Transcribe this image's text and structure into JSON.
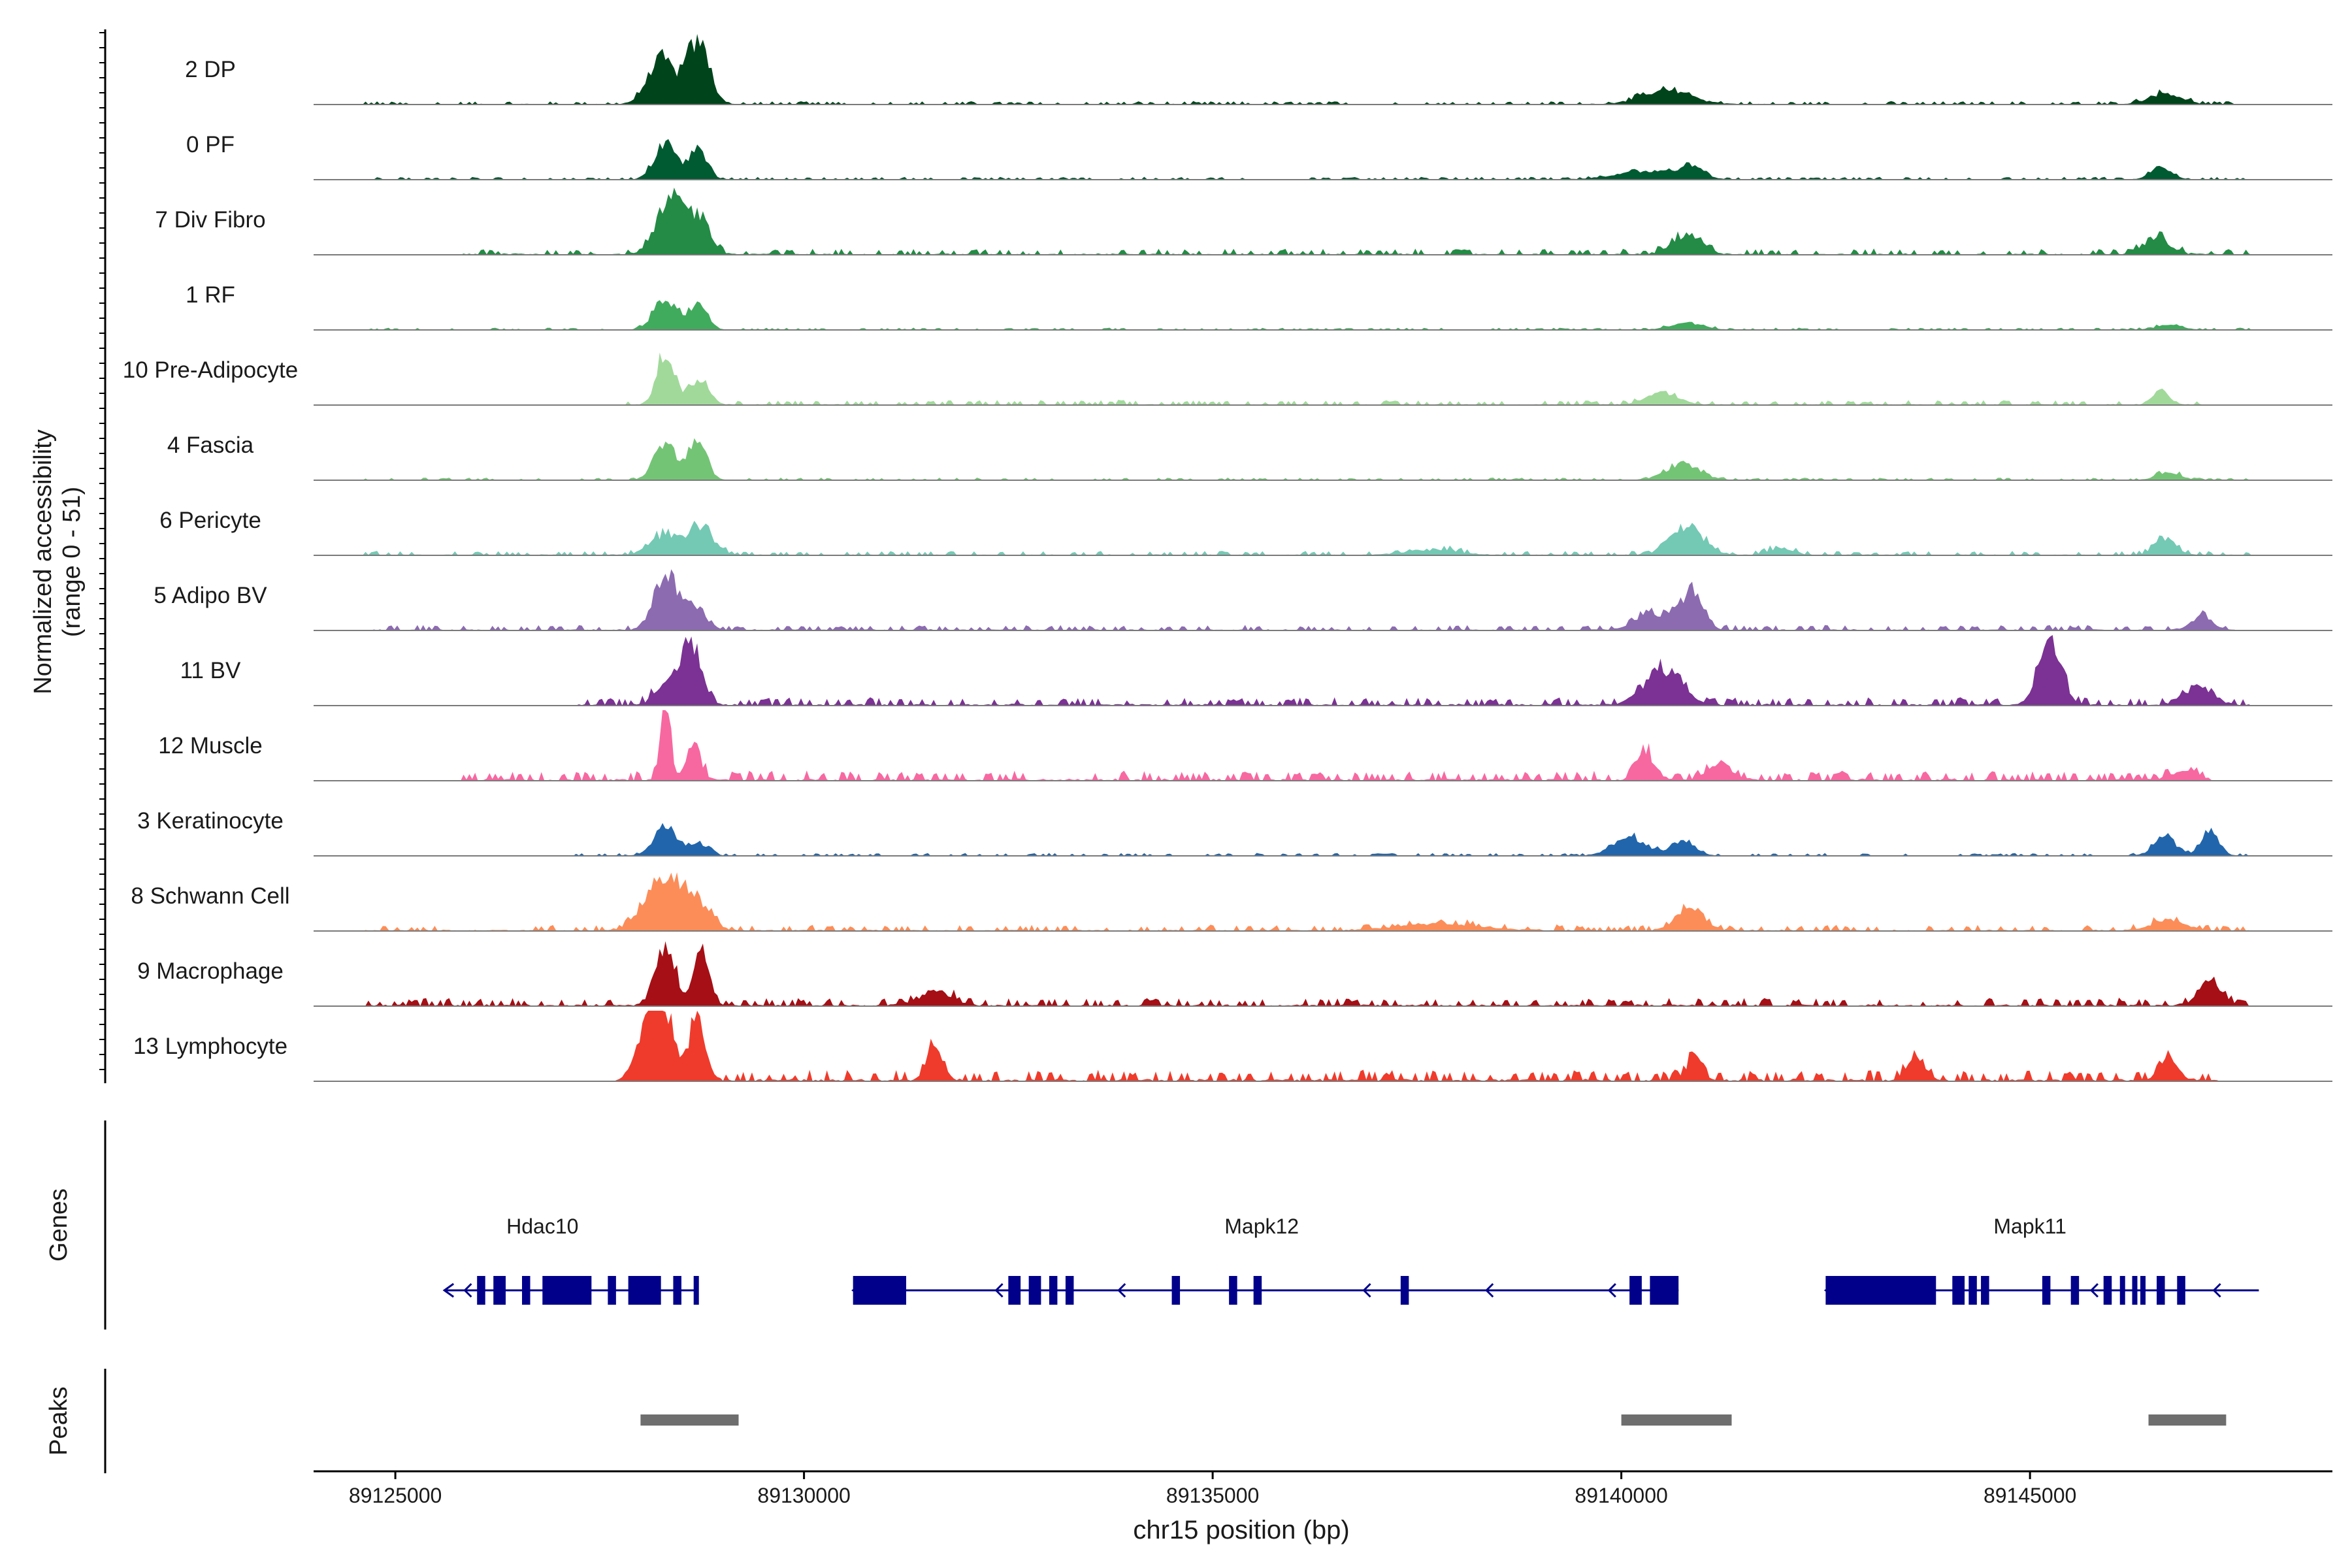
{
  "chart_data": {
    "type": "area",
    "title": "",
    "chromosome": "chr15",
    "xlabel": "chr15 position (bp)",
    "ylabel_line1": "Normalized accessibility",
    "ylabel_line2": "(range 0 - 51)",
    "y_range": [
      0,
      51
    ],
    "xlim": [
      89124000,
      89148700
    ],
    "x_ticks": [
      89125000,
      89130000,
      89135000,
      89140000,
      89145000
    ],
    "x_tick_labels": [
      "89125000",
      "89130000",
      "89135000",
      "89140000",
      "89145000"
    ],
    "track_panel_labels": {
      "genes": "Genes",
      "peaks": "Peaks"
    },
    "tracks": [
      {
        "name": "2 DP",
        "color": "#00441b",
        "peaks": [
          [
            89128250,
            32,
            160
          ],
          [
            89128700,
            45,
            140
          ],
          [
            89140550,
            10,
            300
          ],
          [
            89146650,
            8,
            200
          ]
        ],
        "spread": [
          89124600,
          89147700
        ],
        "noise": 1.2
      },
      {
        "name": "0 PF",
        "color": "#005a32",
        "peaks": [
          [
            89128300,
            26,
            130
          ],
          [
            89128700,
            22,
            110
          ],
          [
            89140300,
            6,
            350
          ],
          [
            89140850,
            8,
            150
          ],
          [
            89146600,
            9,
            120
          ]
        ],
        "spread": [
          89124600,
          89147700
        ],
        "noise": 1.0
      },
      {
        "name": "7 Div Fibro",
        "color": "#238b45",
        "peaks": [
          [
            89128400,
            40,
            180
          ],
          [
            89128750,
            22,
            120
          ],
          [
            89140800,
            14,
            180
          ],
          [
            89146550,
            12,
            160
          ]
        ],
        "spread": [
          89125800,
          89147700
        ],
        "noise": 2.2
      },
      {
        "name": "1 RF",
        "color": "#41ab5d",
        "peaks": [
          [
            89128300,
            22,
            140
          ],
          [
            89128700,
            20,
            110
          ],
          [
            89140800,
            5,
            200
          ],
          [
            89146700,
            4,
            150
          ]
        ],
        "spread": [
          89124600,
          89147700
        ],
        "noise": 0.8
      },
      {
        "name": "10 Pre-Adipocyte",
        "color": "#a1d99b",
        "peaks": [
          [
            89128300,
            38,
            100
          ],
          [
            89128700,
            18,
            130
          ],
          [
            89140500,
            8,
            200
          ],
          [
            89146600,
            12,
            100
          ]
        ],
        "spread": [
          89127800,
          89147200
        ],
        "noise": 1.8
      },
      {
        "name": "4 Fascia",
        "color": "#74c476",
        "peaks": [
          [
            89128300,
            28,
            130
          ],
          [
            89128700,
            30,
            110
          ],
          [
            89140750,
            12,
            200
          ],
          [
            89146700,
            6,
            140
          ]
        ],
        "spread": [
          89124600,
          89147700
        ],
        "noise": 0.9
      },
      {
        "name": "6 Pericyte",
        "color": "#74c9b4",
        "peaks": [
          [
            89128300,
            15,
            180
          ],
          [
            89128750,
            20,
            140
          ],
          [
            89137700,
            4,
            300
          ],
          [
            89140800,
            20,
            200
          ],
          [
            89141950,
            5,
            150
          ],
          [
            89146650,
            12,
            130
          ]
        ],
        "spread": [
          89124600,
          89147700
        ],
        "noise": 1.6
      },
      {
        "name": "5 Adipo BV",
        "color": "#8c6bb1",
        "peaks": [
          [
            89128300,
            40,
            140
          ],
          [
            89128650,
            18,
            140
          ],
          [
            89140400,
            12,
            220
          ],
          [
            89140850,
            26,
            140
          ],
          [
            89147100,
            10,
            130
          ]
        ],
        "spread": [
          89124600,
          89147700
        ],
        "noise": 2.0
      },
      {
        "name": "11 BV",
        "color": "#7b3294",
        "peaks": [
          [
            89128600,
            44,
            130
          ],
          [
            89128300,
            15,
            120
          ],
          [
            89140500,
            25,
            230
          ],
          [
            89145250,
            44,
            140
          ],
          [
            89147050,
            13,
            180
          ]
        ],
        "spread": [
          89127200,
          89147700
        ],
        "noise": 3.0
      },
      {
        "name": "12 Muscle",
        "color": "#f768a1",
        "peaks": [
          [
            89128300,
            60,
            60
          ],
          [
            89128650,
            25,
            90
          ],
          [
            89140300,
            20,
            110
          ],
          [
            89141200,
            10,
            150
          ],
          [
            89146900,
            7,
            150
          ]
        ],
        "spread": [
          89125800,
          89147200
        ],
        "noise": 3.5
      },
      {
        "name": "3 Keratinocyte",
        "color": "#2166ac",
        "peaks": [
          [
            89128300,
            22,
            130
          ],
          [
            89128700,
            10,
            120
          ],
          [
            89140100,
            14,
            200
          ],
          [
            89140750,
            10,
            150
          ],
          [
            89146650,
            14,
            130
          ],
          [
            89147200,
            18,
            110
          ]
        ],
        "spread": [
          89127200,
          89147700
        ],
        "noise": 1.0
      },
      {
        "name": "8 Schwann Cell",
        "color": "#fc8d59",
        "peaks": [
          [
            89128300,
            38,
            230
          ],
          [
            89128700,
            16,
            160
          ],
          [
            89137800,
            5,
            500
          ],
          [
            89140850,
            16,
            170
          ],
          [
            89146700,
            8,
            200
          ]
        ],
        "spread": [
          89124600,
          89147700
        ],
        "noise": 2.2
      },
      {
        "name": "9 Macrophage",
        "color": "#a50f15",
        "peaks": [
          [
            89128300,
            42,
            120
          ],
          [
            89128750,
            40,
            90
          ],
          [
            89131600,
            10,
            200
          ],
          [
            89147200,
            20,
            130
          ]
        ],
        "spread": [
          89124600,
          89147700
        ],
        "noise": 3.0
      },
      {
        "name": "13 Lymphocyte",
        "color": "#ef3b2c",
        "peaks": [
          [
            89128200,
            60,
            170
          ],
          [
            89128700,
            40,
            100
          ],
          [
            89131600,
            30,
            90
          ],
          [
            89140900,
            18,
            90
          ],
          [
            89143600,
            18,
            110
          ],
          [
            89146700,
            14,
            110
          ]
        ],
        "spread": [
          89127800,
          89147300
        ],
        "noise": 4.0
      }
    ],
    "genes": [
      {
        "name": "Hdac10",
        "label_x": 89126800,
        "start": 89125600,
        "end": 89128700,
        "strand": "-",
        "exons": [
          [
            89126000,
            89126100
          ],
          [
            89126200,
            89126350
          ],
          [
            89126550,
            89126650
          ],
          [
            89126800,
            89127400
          ],
          [
            89127600,
            89127700
          ],
          [
            89127850,
            89128250
          ],
          [
            89128400,
            89128500
          ],
          [
            89128650,
            89128700
          ]
        ]
      },
      {
        "name": "Mapk12",
        "label_x": 89135600,
        "start": 89130600,
        "end": 89140700,
        "strand": "-",
        "exons": [
          [
            89130600,
            89131250
          ],
          [
            89132500,
            89132650
          ],
          [
            89132750,
            89132900
          ],
          [
            89133000,
            89133100
          ],
          [
            89133200,
            89133300
          ],
          [
            89134500,
            89134600
          ],
          [
            89135200,
            89135300
          ],
          [
            89135500,
            89135600
          ],
          [
            89137300,
            89137400
          ],
          [
            89140100,
            89140250
          ],
          [
            89140350,
            89140700
          ]
        ]
      },
      {
        "name": "Mapk11",
        "label_x": 89145000,
        "start": 89142500,
        "end": 89147800,
        "strand": "-",
        "exons": [
          [
            89142500,
            89143850
          ],
          [
            89144050,
            89144200
          ],
          [
            89144250,
            89144350
          ],
          [
            89144400,
            89144500
          ],
          [
            89145150,
            89145250
          ],
          [
            89145500,
            89145600
          ],
          [
            89145900,
            89146000
          ],
          [
            89146100,
            89146150
          ],
          [
            89146250,
            89146300
          ],
          [
            89146350,
            89146400
          ],
          [
            89146550,
            89146650
          ],
          [
            89146800,
            89146900
          ]
        ]
      }
    ],
    "peak_regions": [
      [
        89128000,
        89129200
      ],
      [
        89140000,
        89141350
      ],
      [
        89146450,
        89147400
      ]
    ]
  }
}
